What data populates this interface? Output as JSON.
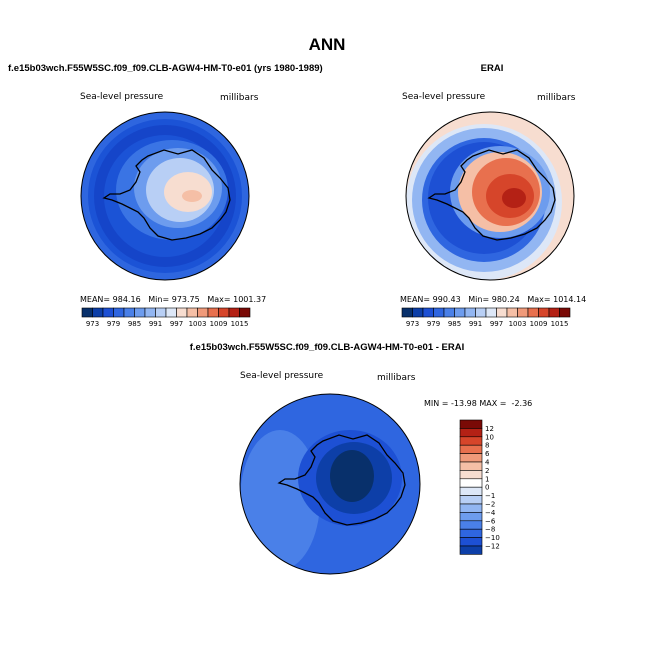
{
  "title": "ANN",
  "chart_data": [
    {
      "type": "polar-contour-map",
      "title": "f.e15b03wch.F55W5SC.f09_f09.CLB-AGW4-HM-T0-e01 (yrs 1980-1989)",
      "field_label": "Sea-level pressure",
      "units": "millibars",
      "stats": {
        "mean": 984.16,
        "min": 973.75,
        "max": 1001.37
      },
      "stats_text": "MEAN= 984.16   Min= 973.75   Max= 1001.37",
      "contour_levels": [
        973,
        976,
        979,
        982,
        985,
        988,
        991,
        994,
        997,
        1000,
        1003,
        1006,
        1009,
        1012,
        1015
      ],
      "colorbar_labels": [
        "973",
        "979",
        "985",
        "991",
        "997",
        "1003",
        "1009",
        "1015"
      ],
      "colors": [
        "#08306b",
        "#0d3fa8",
        "#1d50d4",
        "#2f66e0",
        "#4a80e8",
        "#6d9cee",
        "#92b6f2",
        "#b8cff5",
        "#dde7f7",
        "#f7ddd0",
        "#f5bfa6",
        "#f09a7a",
        "#e8704e",
        "#d6452a",
        "#b42115",
        "#7a0a06"
      ]
    },
    {
      "type": "polar-contour-map",
      "title": "ERAI",
      "field_label": "Sea-level pressure",
      "units": "millibars",
      "stats": {
        "mean": 990.43,
        "min": 980.24,
        "max": 1014.14
      },
      "stats_text": "MEAN= 990.43   Min= 980.24   Max= 1014.14",
      "contour_levels": [
        973,
        976,
        979,
        982,
        985,
        988,
        991,
        994,
        997,
        1000,
        1003,
        1006,
        1009,
        1012,
        1015
      ],
      "colorbar_labels": [
        "973",
        "979",
        "985",
        "991",
        "997",
        "1003",
        "1009",
        "1015"
      ],
      "colors": [
        "#08306b",
        "#0d3fa8",
        "#1d50d4",
        "#2f66e0",
        "#4a80e8",
        "#6d9cee",
        "#92b6f2",
        "#b8cff5",
        "#dde7f7",
        "#f7ddd0",
        "#f5bfa6",
        "#f09a7a",
        "#e8704e",
        "#d6452a",
        "#b42115",
        "#7a0a06"
      ]
    },
    {
      "type": "polar-contour-map",
      "title": "f.e15b03wch.F55W5SC.f09_f09.CLB-AGW4-HM-T0-e01 - ERAI",
      "field_label": "Sea-level pressure",
      "units": "millibars",
      "stats": {
        "min": -13.98,
        "max": -2.36
      },
      "stats_text": "MIN = -13.98 MAX =  -2.36",
      "contour_levels": [
        -12,
        -10,
        -8,
        -6,
        -4,
        -2,
        -1,
        0,
        1,
        2,
        4,
        6,
        8,
        10,
        12
      ],
      "colorbar_labels": [
        "12",
        "10",
        "8",
        "6",
        "4",
        "2",
        "1",
        "0",
        "−1",
        "−2",
        "−4",
        "−6",
        "−8",
        "−10",
        "−12"
      ],
      "colors": [
        "#7a0a06",
        "#b42115",
        "#d6452a",
        "#e8704e",
        "#f09a7a",
        "#f5bfa6",
        "#f7ddd0",
        "#ffffff",
        "#dde7f7",
        "#b8cff5",
        "#92b6f2",
        "#6d9cee",
        "#4a80e8",
        "#2f66e0",
        "#1d50d4",
        "#0d3fa8"
      ]
    }
  ]
}
